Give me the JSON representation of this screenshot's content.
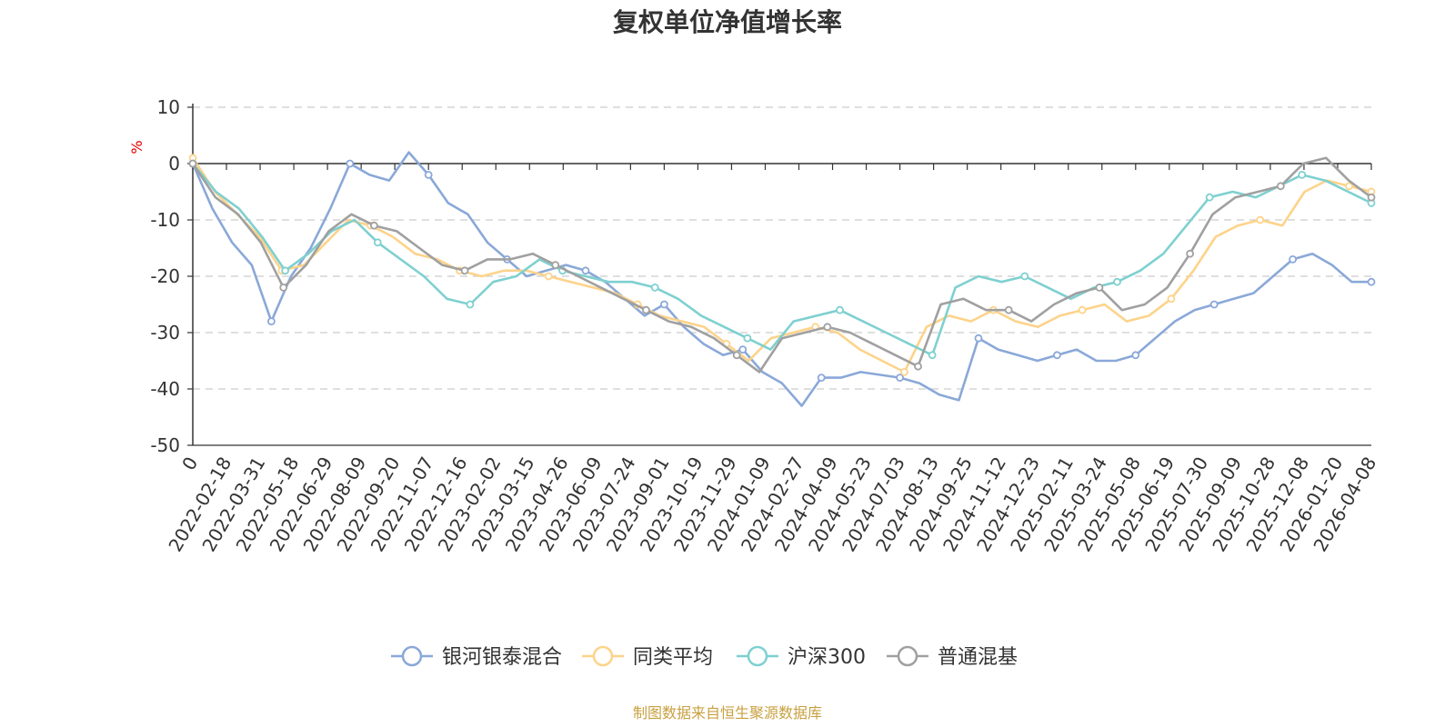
{
  "chart_data": {
    "type": "line",
    "title": "复权单位净值增长率",
    "ylabel": "%",
    "ylim": [
      -50,
      10
    ],
    "yticks": [
      10,
      0,
      -10,
      -20,
      -30,
      -40,
      -50
    ],
    "x_ticks": [
      "0",
      "2022-02-18",
      "2022-03-31",
      "2022-05-18",
      "2022-06-29",
      "2022-08-09",
      "2022-09-20",
      "2022-11-07",
      "2022-12-16",
      "2023-02-02",
      "2023-03-15",
      "2023-04-26",
      "2023-06-09",
      "2023-07-24",
      "2023-09-01",
      "2023-10-19",
      "2023-11-29",
      "2024-01-09",
      "2024-02-27",
      "2024-04-09",
      "2024-05-23",
      "2024-07-03",
      "2024-08-13",
      "2024-09-25",
      "2024-11-12",
      "2024-12-23",
      "2025-02-11",
      "2025-03-24",
      "2025-05-08",
      "2025-06-19",
      "2025-07-30",
      "2025-09-09",
      "2025-10-28",
      "2025-12-08",
      "2026-01-20",
      "2026-04-08"
    ],
    "grid": true,
    "legend_position": "bottom",
    "source": "制图数据来自恒生聚源数据库",
    "series": [
      {
        "name": "银河银泰混合",
        "color": "#8aa8d8",
        "values": [
          0,
          -8,
          -14,
          -18,
          -28,
          -20,
          -15,
          -8,
          0,
          -2,
          -3,
          2,
          -2,
          -7,
          -9,
          -14,
          -17,
          -20,
          -19,
          -18,
          -19,
          -21,
          -24,
          -27,
          -25,
          -29,
          -32,
          -34,
          -33,
          -37,
          -39,
          -43,
          -38,
          -38,
          -37,
          -37.5,
          -38,
          -39,
          -41,
          -42,
          -31,
          -33,
          -34,
          -35,
          -34,
          -33,
          -35,
          -35,
          -34,
          -31,
          -28,
          -26,
          -25,
          -24,
          -23,
          -20,
          -17,
          -16,
          -18,
          -21,
          -21
        ]
      },
      {
        "name": "同类平均",
        "color": "#fdd38a",
        "values": [
          1,
          -5,
          -9,
          -13,
          -19,
          -18,
          -14,
          -10,
          -11,
          -13,
          -16,
          -17,
          -19,
          -20,
          -19,
          -19,
          -20,
          -21,
          -22,
          -23,
          -25,
          -27,
          -28,
          -29,
          -32,
          -35,
          -31,
          -30,
          -29,
          -30,
          -33,
          -35,
          -37,
          -29,
          -27,
          -28,
          -26,
          -28,
          -29,
          -27,
          -26,
          -25,
          -28,
          -27,
          -24,
          -19,
          -13,
          -11,
          -10,
          -11,
          -5,
          -3,
          -4,
          -5
        ]
      },
      {
        "name": "沪深300",
        "color": "#7fd0d0",
        "values": [
          0,
          -5,
          -8,
          -13,
          -19,
          -16,
          -12,
          -10,
          -14,
          -17,
          -20,
          -24,
          -25,
          -21,
          -20,
          -17,
          -19,
          -20,
          -21,
          -21,
          -22,
          -24,
          -27,
          -29,
          -31,
          -33,
          -28,
          -27,
          -26,
          -28,
          -30,
          -32,
          -34,
          -22,
          -20,
          -21,
          -20,
          -22,
          -24,
          -22,
          -21,
          -19,
          -16,
          -11,
          -6,
          -5,
          -6,
          -4,
          -2,
          -3,
          -5,
          -7
        ]
      },
      {
        "name": "普通混基",
        "color": "#a0a0a0",
        "values": [
          0,
          -6,
          -9,
          -14,
          -22,
          -18,
          -12,
          -9,
          -11,
          -12,
          -15,
          -18,
          -19,
          -17,
          -17,
          -16,
          -18,
          -20,
          -22,
          -24,
          -26,
          -28,
          -29,
          -31,
          -34,
          -37,
          -31,
          -30,
          -29,
          -30,
          -32,
          -34,
          -36,
          -25,
          -24,
          -26,
          -26,
          -28,
          -25,
          -23,
          -22,
          -26,
          -25,
          -22,
          -16,
          -9,
          -6,
          -5,
          -4,
          0,
          1,
          -3,
          -6
        ]
      }
    ]
  }
}
